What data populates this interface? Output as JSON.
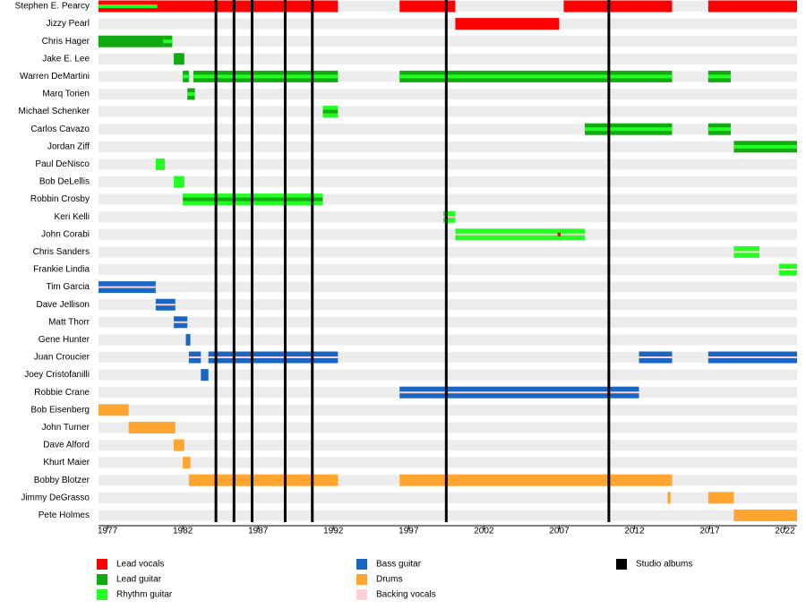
{
  "chart_data": {
    "type": "timeline",
    "xlim": [
      1976.4,
      2022.8
    ],
    "xticks": [
      1977,
      1982,
      1987,
      1992,
      1997,
      2002,
      2007,
      2012,
      2017,
      2022
    ],
    "roles": [
      {
        "name": "Lead vocals",
        "color": "#ff0000"
      },
      {
        "name": "Lead guitar",
        "color": "#11aa11"
      },
      {
        "name": "Rhythm guitar",
        "color": "#22ff22"
      },
      {
        "name": "Bass guitar",
        "color": "#1a66c4"
      },
      {
        "name": "Drums",
        "color": "#ffa530"
      },
      {
        "name": "Backing vocals",
        "color": "#ffd0d0"
      }
    ],
    "albums": {
      "name": "Studio albums",
      "color": "#000000",
      "x": [
        1984.2,
        1985.4,
        1986.6,
        1988.8,
        1990.6,
        1999.5,
        2010.3
      ]
    },
    "members": [
      {
        "name": "Stephen E. Pearcy",
        "periods": [
          {
            "roles": [
              "Lead vocals",
              "Rhythm guitar"
            ],
            "from": 1976.4,
            "to": 1980.3
          },
          {
            "roles": [
              "Lead vocals"
            ],
            "from": 1980.3,
            "to": 1992.3
          },
          {
            "roles": [
              "Lead vocals"
            ],
            "from": 1996.4,
            "to": 2000.1
          },
          {
            "roles": [
              "Lead vocals"
            ],
            "from": 2007.3,
            "to": 2014.5
          },
          {
            "roles": [
              "Lead vocals"
            ],
            "from": 2016.9,
            "to": 2022.8
          }
        ]
      },
      {
        "name": "Jizzy Pearl",
        "periods": [
          {
            "roles": [
              "Lead vocals"
            ],
            "from": 2000.1,
            "to": 2007.0
          }
        ]
      },
      {
        "name": "Chris Hager",
        "periods": [
          {
            "roles": [
              "Lead guitar"
            ],
            "from": 1976.4,
            "to": 1980.7
          },
          {
            "roles": [
              "Lead guitar",
              "Rhythm guitar"
            ],
            "from": 1980.7,
            "to": 1981.3
          }
        ]
      },
      {
        "name": "Jake E. Lee",
        "periods": [
          {
            "roles": [
              "Lead guitar"
            ],
            "from": 1981.4,
            "to": 1982.1
          }
        ]
      },
      {
        "name": "Warren DeMartini",
        "periods": [
          {
            "roles": [
              "Lead guitar",
              "Rhythm guitar"
            ],
            "from": 1982.0,
            "to": 1982.4
          },
          {
            "roles": [
              "Lead guitar",
              "Rhythm guitar"
            ],
            "from": 1982.7,
            "to": 1992.3
          },
          {
            "roles": [
              "Lead guitar",
              "Rhythm guitar"
            ],
            "from": 1996.4,
            "to": 2014.5
          },
          {
            "roles": [
              "Lead guitar",
              "Rhythm guitar"
            ],
            "from": 2016.9,
            "to": 2018.4
          }
        ]
      },
      {
        "name": "Marq Torien",
        "periods": [
          {
            "roles": [
              "Lead guitar",
              "Rhythm guitar"
            ],
            "from": 1982.3,
            "to": 1982.8
          }
        ]
      },
      {
        "name": "Michael Schenker",
        "periods": [
          {
            "roles": [
              "Rhythm guitar",
              "Lead guitar"
            ],
            "from": 1991.3,
            "to": 1992.3
          }
        ]
      },
      {
        "name": "Carlos Cavazo",
        "periods": [
          {
            "roles": [
              "Lead guitar",
              "Rhythm guitar"
            ],
            "from": 2008.7,
            "to": 2014.5
          },
          {
            "roles": [
              "Lead guitar",
              "Rhythm guitar"
            ],
            "from": 2016.9,
            "to": 2018.4
          }
        ]
      },
      {
        "name": "Jordan Ziff",
        "periods": [
          {
            "roles": [
              "Lead guitar",
              "Rhythm guitar"
            ],
            "from": 2018.6,
            "to": 2022.8
          }
        ]
      },
      {
        "name": "Paul DeNisco",
        "periods": [
          {
            "roles": [
              "Rhythm guitar"
            ],
            "from": 1980.2,
            "to": 1980.8
          }
        ]
      },
      {
        "name": "Bob DeLellis",
        "periods": [
          {
            "roles": [
              "Rhythm guitar"
            ],
            "from": 1981.4,
            "to": 1982.1
          }
        ]
      },
      {
        "name": "Robbin Crosby",
        "periods": [
          {
            "roles": [
              "Rhythm guitar",
              "Lead guitar"
            ],
            "from": 1982.0,
            "to": 1991.3
          }
        ]
      },
      {
        "name": "Keri Kelli",
        "periods": [
          {
            "roles": [
              "Rhythm guitar",
              "Backing vocals"
            ],
            "from": 1999.3,
            "to": 2000.1
          }
        ]
      },
      {
        "name": "John Corabi",
        "periods": [
          {
            "roles": [
              "Rhythm guitar",
              "Backing vocals"
            ],
            "from": 2000.1,
            "to": 2008.7
          },
          {
            "roles": [
              "Rhythm guitar",
              "Lead vocals"
            ],
            "from": 2006.9,
            "to": 2007.1
          }
        ]
      },
      {
        "name": "Chris Sanders",
        "periods": [
          {
            "roles": [
              "Rhythm guitar",
              "Backing vocals"
            ],
            "from": 2018.6,
            "to": 2020.3
          }
        ]
      },
      {
        "name": "Frankie Lindia",
        "periods": [
          {
            "roles": [
              "Rhythm guitar",
              "Backing vocals"
            ],
            "from": 2021.6,
            "to": 2022.8
          }
        ]
      },
      {
        "name": "Tim Garcia",
        "periods": [
          {
            "roles": [
              "Bass guitar",
              "Backing vocals"
            ],
            "from": 1976.4,
            "to": 1980.2
          }
        ]
      },
      {
        "name": "Dave Jellison",
        "periods": [
          {
            "roles": [
              "Bass guitar",
              "Backing vocals"
            ],
            "from": 1980.2,
            "to": 1981.5
          }
        ]
      },
      {
        "name": "Matt Thorr",
        "periods": [
          {
            "roles": [
              "Bass guitar",
              "Backing vocals"
            ],
            "from": 1981.4,
            "to": 1982.3
          }
        ]
      },
      {
        "name": "Gene Hunter",
        "periods": [
          {
            "roles": [
              "Bass guitar"
            ],
            "from": 1982.2,
            "to": 1982.5
          }
        ]
      },
      {
        "name": "Juan Croucier",
        "periods": [
          {
            "roles": [
              "Bass guitar",
              "Backing vocals"
            ],
            "from": 1982.4,
            "to": 1983.2
          },
          {
            "roles": [
              "Bass guitar",
              "Backing vocals"
            ],
            "from": 1983.7,
            "to": 1992.3
          },
          {
            "roles": [
              "Bass guitar",
              "Backing vocals"
            ],
            "from": 2012.3,
            "to": 2014.5
          },
          {
            "roles": [
              "Bass guitar",
              "Backing vocals"
            ],
            "from": 2016.9,
            "to": 2022.8
          }
        ]
      },
      {
        "name": "Joey Cristofanilli",
        "periods": [
          {
            "roles": [
              "Bass guitar"
            ],
            "from": 1983.2,
            "to": 1983.7
          }
        ]
      },
      {
        "name": "Robbie Crane",
        "periods": [
          {
            "roles": [
              "Bass guitar",
              "Backing vocals"
            ],
            "from": 1996.4,
            "to": 2012.3
          }
        ]
      },
      {
        "name": "Bob Eisenberg",
        "periods": [
          {
            "roles": [
              "Drums"
            ],
            "from": 1976.4,
            "to": 1978.4
          }
        ]
      },
      {
        "name": "John Turner",
        "periods": [
          {
            "roles": [
              "Drums"
            ],
            "from": 1978.4,
            "to": 1981.5
          }
        ]
      },
      {
        "name": "Dave Alford",
        "periods": [
          {
            "roles": [
              "Drums"
            ],
            "from": 1981.4,
            "to": 1982.1
          }
        ]
      },
      {
        "name": "Khurt Maier",
        "periods": [
          {
            "roles": [
              "Drums"
            ],
            "from": 1982.0,
            "to": 1982.5
          }
        ]
      },
      {
        "name": "Bobby Blotzer",
        "periods": [
          {
            "roles": [
              "Drums"
            ],
            "from": 1982.4,
            "to": 1992.3
          },
          {
            "roles": [
              "Drums"
            ],
            "from": 1996.4,
            "to": 2014.5
          }
        ]
      },
      {
        "name": "Jimmy DeGrasso",
        "periods": [
          {
            "roles": [
              "Drums"
            ],
            "from": 2014.2,
            "to": 2014.4
          },
          {
            "roles": [
              "Drums"
            ],
            "from": 2016.9,
            "to": 2018.6
          }
        ]
      },
      {
        "name": "Pete Holmes",
        "periods": [
          {
            "roles": [
              "Drums"
            ],
            "from": 2018.6,
            "to": 2022.8
          }
        ]
      }
    ]
  }
}
